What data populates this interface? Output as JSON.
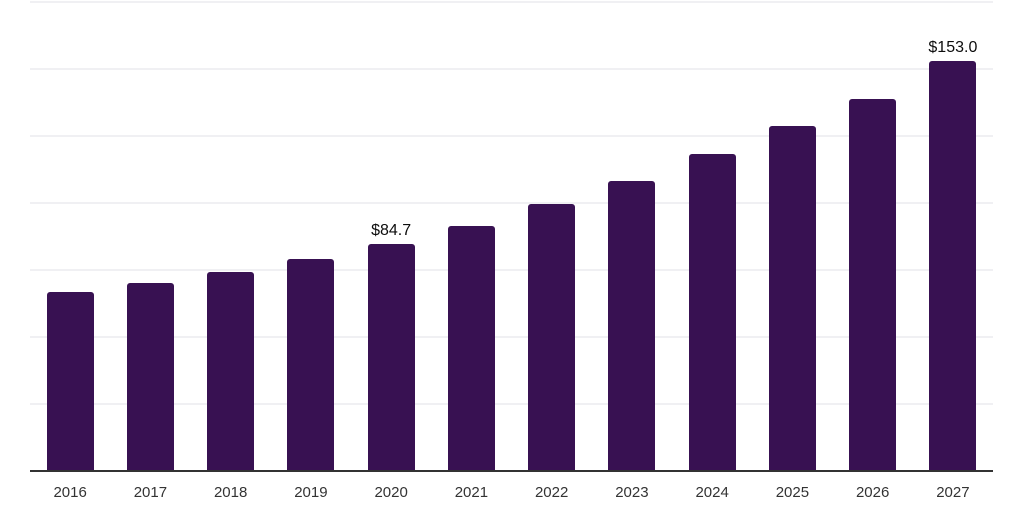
{
  "chart_data": {
    "type": "bar",
    "title": "",
    "xlabel": "",
    "ylabel": "",
    "categories": [
      "2016",
      "2017",
      "2018",
      "2019",
      "2020",
      "2021",
      "2022",
      "2023",
      "2024",
      "2025",
      "2026",
      "2027"
    ],
    "values": [
      66.8,
      70.2,
      74.4,
      79.2,
      84.7,
      91.5,
      99.7,
      108.2,
      118.3,
      128.6,
      138.8,
      153.0
    ],
    "data_labels": [
      {
        "category": "2020",
        "text": "$84.7"
      },
      {
        "category": "2027",
        "text": "$153.0"
      }
    ],
    "ylim": [
      0,
      175
    ],
    "grid_step": 25,
    "grid": "horizontal-only",
    "y_axis_labels_visible": false,
    "legend": "none",
    "colors": {
      "bar": "#381152",
      "gridline": "#f0f0f3",
      "baseline": "#333333",
      "tick_label": "#333333",
      "value_label": "#0d0d0d",
      "background": "#ffffff"
    }
  }
}
